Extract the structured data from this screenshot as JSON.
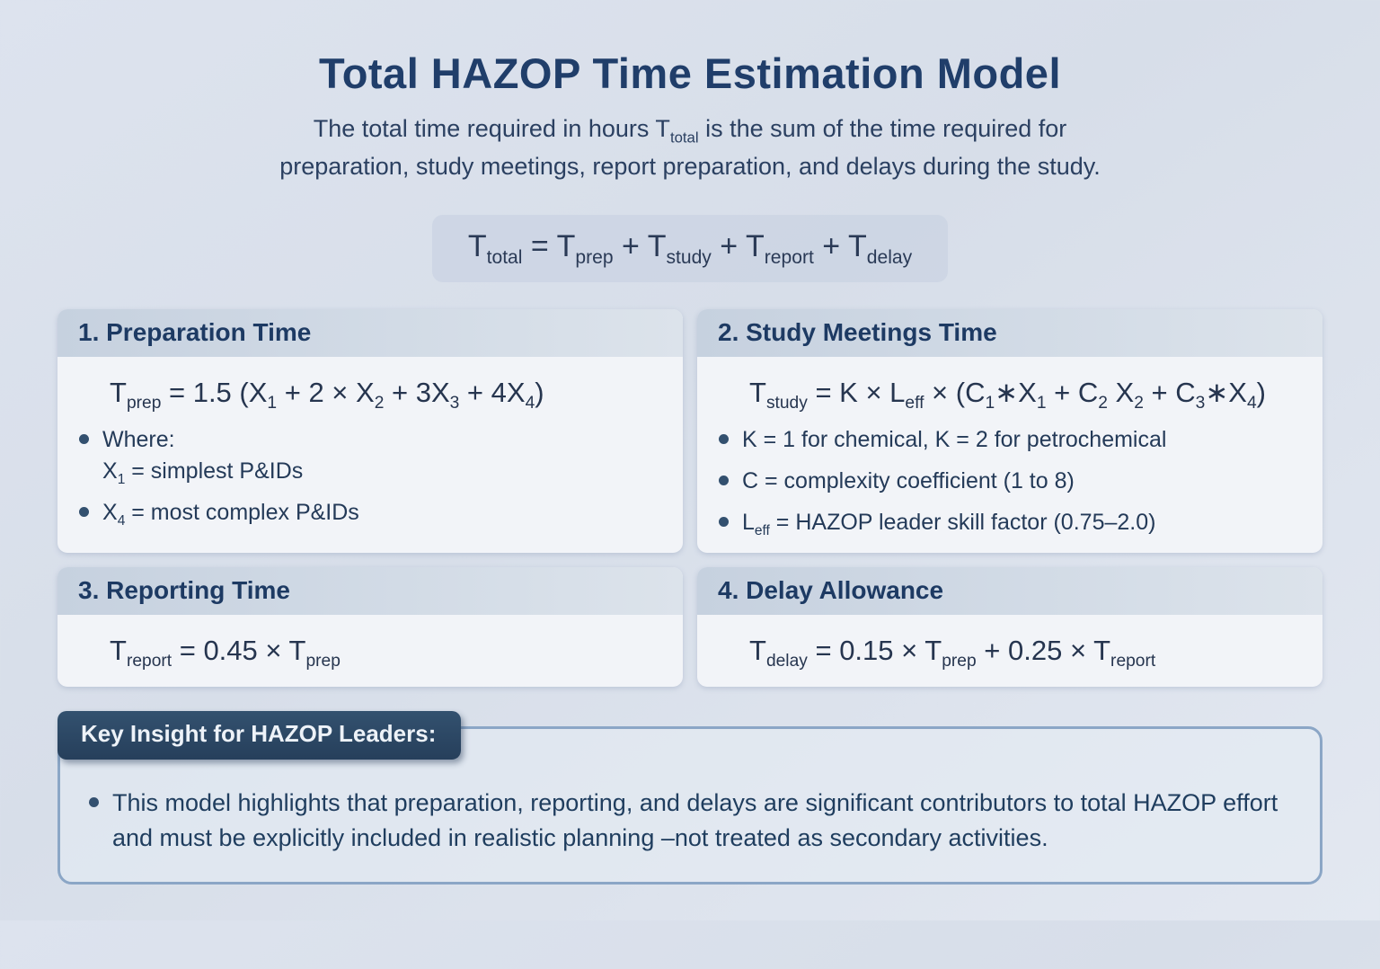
{
  "page": {
    "title": "Total HAZOP Time Estimation Model",
    "subtitle_line1_html": "The total time required in hours T<sub>total</sub> is the sum of the time required for",
    "subtitle_line2": "preparation, study meetings, report preparation, and delays during the study.",
    "main_formula_html": "T<sub>total</sub> = T<sub>prep</sub> + T<sub>study</sub> + T<sub>report</sub> + T<sub>delay</sub>"
  },
  "panels": [
    {
      "title": "1. Preparation Time",
      "formula_html": "T<sub>prep</sub> = 1.5 (X<sub>1</sub> + 2 × X<sub>2</sub> + 3X<sub>3</sub> + 4X<sub>4</sub>)",
      "bullets_html": [
        "Where:<br>X<sub>1</sub> = simplest P&amp;IDs",
        "X<sub>4</sub> = most complex P&amp;IDs"
      ]
    },
    {
      "title": "2. Study Meetings Time",
      "formula_html": "T<sub>study</sub> = K × L<sub>eff</sub> × (C<sub>1</sub>∗X<sub>1</sub> + C<sub>2</sub> X<sub>2</sub> + C<sub>3</sub>∗X<sub>4</sub>)",
      "bullets_html": [
        "K = 1 for chemical, K = 2 for petrochemical",
        "C = complexity coefficient (1 to 8)",
        "L<sub>eff</sub> = HAZOP leader skill factor (0.75–2.0)"
      ]
    },
    {
      "title": "3. Reporting Time",
      "formula_html": "T<sub>report</sub> = 0.45 × T<sub>prep</sub>"
    },
    {
      "title": "4. Delay Allowance",
      "formula_html": "T<sub>delay</sub> = 0.15 × T<sub>prep</sub> + 0.25 × T<sub>report</sub>"
    }
  ],
  "insight": {
    "badge_label": "Key Insight for HAZOP Leaders:",
    "text": "This model highlights that preparation, reporting, and delays are significant contributors to total HAZOP effort and must be explicitly included in realistic planning –not treated as secondary activities."
  },
  "colors": {
    "title_navy": "#203e6a",
    "panel_header_navy": "#1d3a63",
    "badge_bg": "#2c4765",
    "insight_border": "#8ba6c6",
    "page_background": "#dbe1ec",
    "panel_bg": "#f2f4f8",
    "formula_box_bg": "#cad4e3"
  }
}
